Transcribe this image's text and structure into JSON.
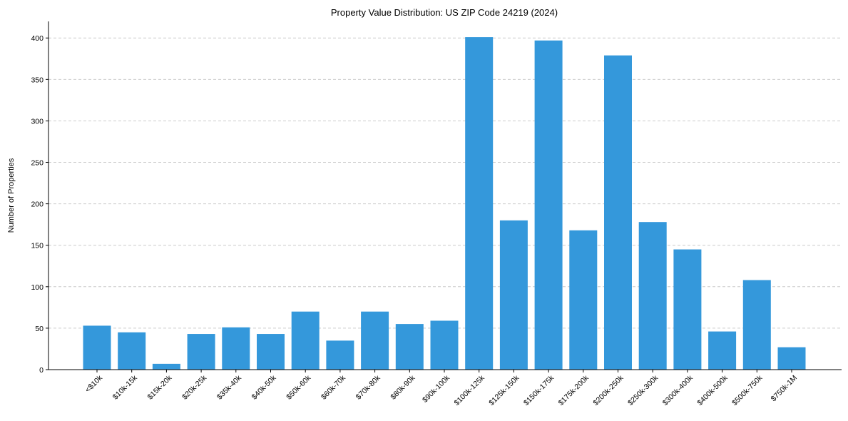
{
  "chart_data": {
    "type": "bar",
    "title": "Property Value Distribution: US ZIP Code 24219 (2024)",
    "xlabel": "",
    "ylabel": "Number of Properties",
    "categories": [
      "<$10k",
      "$10k-15k",
      "$15k-20k",
      "$20k-25k",
      "$35k-40k",
      "$40k-50k",
      "$50k-60k",
      "$60k-70k",
      "$70k-80k",
      "$80k-90k",
      "$90k-100k",
      "$100k-125k",
      "$125k-150k",
      "$150k-175k",
      "$175k-200k",
      "$200k-250k",
      "$250k-300k",
      "$300k-400k",
      "$400k-500k",
      "$500k-750k",
      "$750k-1M"
    ],
    "values": [
      53,
      45,
      7,
      43,
      51,
      43,
      70,
      35,
      70,
      55,
      59,
      401,
      180,
      397,
      168,
      379,
      178,
      145,
      46,
      108,
      27
    ],
    "ylim": [
      0,
      420
    ],
    "yticks": [
      0,
      50,
      100,
      150,
      200,
      250,
      300,
      350,
      400
    ],
    "grid": true,
    "bar_color": "#3498db"
  }
}
